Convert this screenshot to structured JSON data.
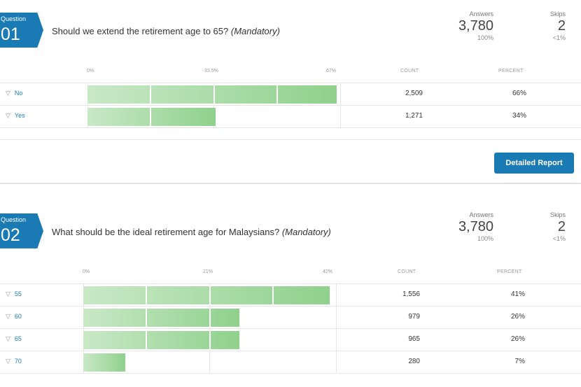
{
  "questions": [
    {
      "badge_word": "Question",
      "badge_num": "01",
      "title": "Should we extend the retirement age to 65?",
      "mandatory": "(Mandatory)",
      "answers_label": "Answers",
      "answers_value": "3,780",
      "answers_pct": "100%",
      "skips_label": "Skips",
      "skips_value": "2",
      "skips_pct": "<1%",
      "axis_ticks": [
        "0%",
        "33.5%",
        "67%"
      ],
      "count_header": "COUNT",
      "percent_header": "PERCENT",
      "rows": [
        {
          "label": "No",
          "count": "2,509",
          "percent": "66%",
          "value": 66
        },
        {
          "label": "Yes",
          "count": "1,271",
          "percent": "34%",
          "value": 34
        }
      ]
    },
    {
      "badge_word": "Question",
      "badge_num": "02",
      "title": "What should be the ideal retirement age for Malaysians?",
      "mandatory": "(Mandatory)",
      "answers_label": "Answers",
      "answers_value": "3,780",
      "answers_pct": "100%",
      "skips_label": "Skips",
      "skips_value": "2",
      "skips_pct": "<1%",
      "axis_ticks": [
        "0%",
        "21%",
        "42%"
      ],
      "count_header": "COUNT",
      "percent_header": "PERCENT",
      "rows": [
        {
          "label": "55",
          "count": "1,556",
          "percent": "41%",
          "value": 41
        },
        {
          "label": "60",
          "count": "979",
          "percent": "26%",
          "value": 26
        },
        {
          "label": "65",
          "count": "965",
          "percent": "26%",
          "value": 26
        },
        {
          "label": "70",
          "count": "280",
          "percent": "7%",
          "value": 7
        }
      ]
    }
  ],
  "detailed_report_label": "Detailed Report",
  "icons": {
    "filter": "filter-icon"
  },
  "colors": {
    "accent": "#1a7ab3",
    "bar_light": "#c9e8c7",
    "bar_dark": "#8fd18c"
  },
  "chart_data": [
    {
      "type": "bar",
      "categories": [
        "No",
        "Yes"
      ],
      "values": [
        66,
        34
      ],
      "ylim": [
        0,
        67
      ],
      "tick_labels": [
        "0%",
        "33.5%",
        "67%"
      ]
    },
    {
      "type": "bar",
      "categories": [
        "55",
        "60",
        "65",
        "70"
      ],
      "values": [
        41,
        26,
        26,
        7
      ],
      "ylim": [
        0,
        42
      ],
      "tick_labels": [
        "0%",
        "21%",
        "42%"
      ]
    }
  ]
}
